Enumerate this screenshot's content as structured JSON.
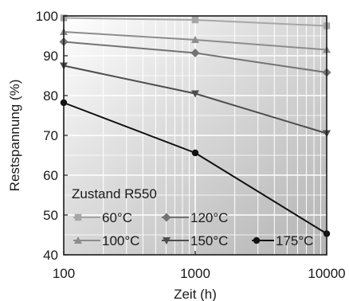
{
  "chart_data": {
    "type": "line",
    "xscale": "log",
    "xlim": [
      100,
      10000
    ],
    "ylim": [
      40,
      100
    ],
    "x_ticks": [
      100,
      1000,
      10000
    ],
    "y_ticks": [
      40,
      50,
      60,
      70,
      80,
      90,
      100
    ],
    "x_tick_labels": [
      "100",
      "1000",
      "10000"
    ],
    "y_tick_labels": [
      "40",
      "50",
      "60",
      "70",
      "80",
      "90",
      "100"
    ],
    "xlabel": "Zeit (h)",
    "ylabel": "Restspannung (%)",
    "grid": true,
    "legend_title": "Zustand R550",
    "legend_position": "bottom-left",
    "x": [
      100,
      1000,
      10000
    ],
    "series": [
      {
        "name": "60°C",
        "values": [
          99.5,
          99.0,
          97.5
        ],
        "color": "#a6a6a6",
        "marker": "square"
      },
      {
        "name": "100°C",
        "values": [
          96.0,
          94.0,
          91.5
        ],
        "color": "#8c8c8c",
        "marker": "triangle-up"
      },
      {
        "name": "120°C",
        "values": [
          93.5,
          90.7,
          85.8
        ],
        "color": "#737373",
        "marker": "diamond"
      },
      {
        "name": "150°C",
        "values": [
          87.5,
          80.5,
          70.5
        ],
        "color": "#4d4d4d",
        "marker": "triangle-down"
      },
      {
        "name": "175°C",
        "values": [
          78.2,
          65.6,
          45.3
        ],
        "color": "#111111",
        "marker": "circle"
      }
    ]
  }
}
